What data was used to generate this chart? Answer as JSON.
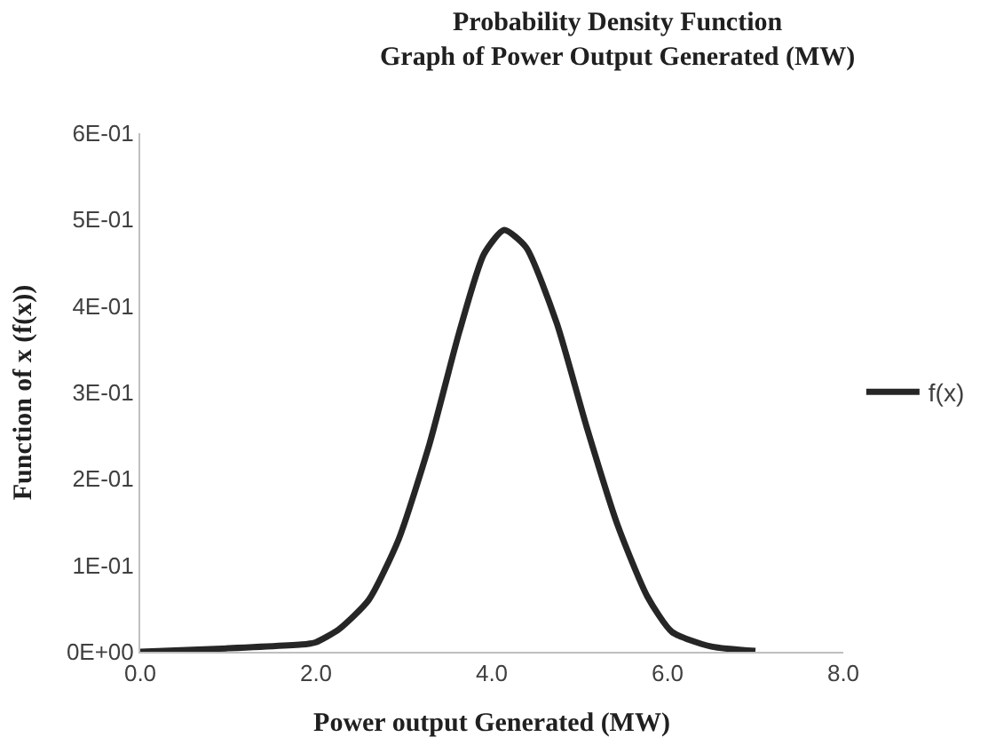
{
  "chart_data": {
    "type": "line",
    "title": "Probability Density Function\nGraph of Power Output Generated (MW)",
    "xlabel": "Power output Generated (MW)",
    "ylabel": "Function of x (f(x))",
    "x": [
      0,
      1.0,
      1.9,
      2.0,
      2.26,
      2.6,
      2.94,
      3.29,
      3.63,
      3.91,
      4.14,
      4.39,
      4.74,
      5.08,
      5.43,
      5.77,
      6.05,
      6.5,
      7.0
    ],
    "series": [
      {
        "name": "f(x)",
        "color": "#262626",
        "values": [
          0,
          0.004,
          0.009,
          0.011,
          0.026,
          0.06,
          0.13,
          0.24,
          0.37,
          0.46,
          0.488,
          0.468,
          0.38,
          0.26,
          0.147,
          0.064,
          0.023,
          0.006,
          0.001
        ]
      }
    ],
    "xlim": [
      0,
      8
    ],
    "xticks": [
      {
        "value": 0,
        "label": "0.0"
      },
      {
        "value": 2,
        "label": "2.0"
      },
      {
        "value": 4,
        "label": "4.0"
      },
      {
        "value": 6,
        "label": "6.0"
      },
      {
        "value": 8,
        "label": "8.0"
      }
    ],
    "ylim": [
      0,
      0.6
    ],
    "yticks": [
      {
        "value": 0,
        "label": "0E+00"
      },
      {
        "value": 0.1,
        "label": "1E-01"
      },
      {
        "value": 0.2,
        "label": "2E-01"
      },
      {
        "value": 0.3,
        "label": "3E-01"
      },
      {
        "value": 0.4,
        "label": "4E-01"
      },
      {
        "value": 0.5,
        "label": "5E-01"
      },
      {
        "value": 0.6,
        "label": "6E-01"
      }
    ],
    "legend": "right",
    "marker": "none",
    "line_style": "solid"
  }
}
